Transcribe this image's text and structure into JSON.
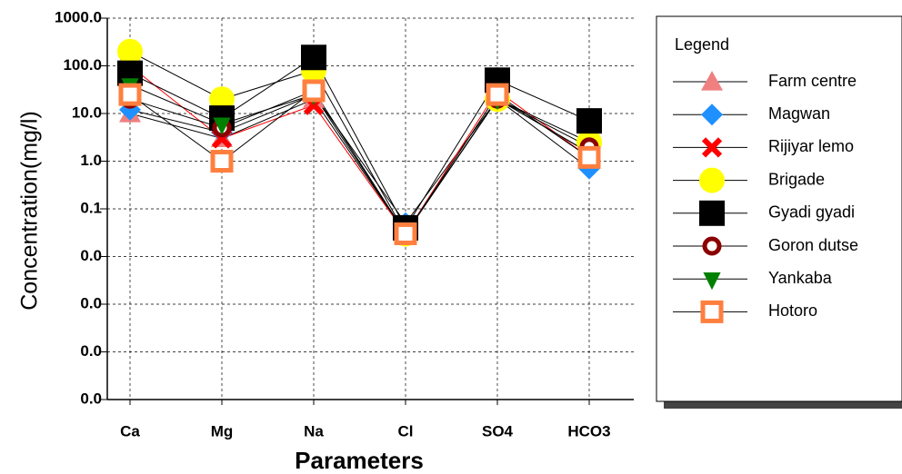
{
  "chart_data": {
    "type": "line",
    "y_label": "Concentration(mg/l)",
    "x_label": "Parameters",
    "legend_title": "Legend",
    "legend": "right",
    "grid": true,
    "log_y": true,
    "categories": [
      "Ca",
      "Mg",
      "Na",
      "Cl",
      "SO4",
      "HCO3"
    ],
    "ylim": [
      1e-05,
      1000
    ],
    "yticks": [
      {
        "value": 1000,
        "label": "1000.0"
      },
      {
        "value": 100,
        "label": "100.0"
      },
      {
        "value": 10,
        "label": "10.0"
      },
      {
        "value": 1,
        "label": "1.0"
      },
      {
        "value": 0.1,
        "label": "0.1"
      },
      {
        "value": 0.01,
        "label": "0.0"
      },
      {
        "value": 0.001,
        "label": "0.0"
      },
      {
        "value": 0.0001,
        "label": "0.0"
      },
      {
        "value": 1e-05,
        "label": "0.0"
      }
    ],
    "series": [
      {
        "name": "Farm centre",
        "color": "#f08080",
        "marker": "triangle",
        "values": [
          10,
          3,
          20,
          0.03,
          20,
          1.5
        ]
      },
      {
        "name": "Magwan",
        "color": "#1e90ff",
        "marker": "diamond",
        "values": [
          12,
          4,
          25,
          0.05,
          20,
          0.7
        ]
      },
      {
        "name": "Rijiyar lemo",
        "color": "#ff0000",
        "marker": "cross",
        "values": [
          100,
          3,
          15,
          0.03,
          30,
          1.2
        ]
      },
      {
        "name": "Brigade",
        "color": "#ffff00",
        "marker": "circle",
        "values": [
          200,
          20,
          80,
          0.03,
          20,
          2.5
        ]
      },
      {
        "name": "Gyadi gyadi",
        "color": "#000000",
        "marker": "square",
        "values": [
          70,
          8,
          150,
          0.04,
          50,
          7
        ]
      },
      {
        "name": "Goron dutse",
        "color": "#8b0000",
        "marker": "ring",
        "values": [
          20,
          5,
          30,
          0.03,
          20,
          2
        ]
      },
      {
        "name": "Yankaba",
        "color": "#008000",
        "marker": "tridown",
        "values": [
          40,
          6,
          25,
          0.03,
          20,
          1.5
        ]
      },
      {
        "name": "Hotoro",
        "color": "#ff7f3f",
        "marker": "hollowsquare",
        "values": [
          25,
          1,
          30,
          0.03,
          25,
          1.2
        ]
      }
    ]
  }
}
